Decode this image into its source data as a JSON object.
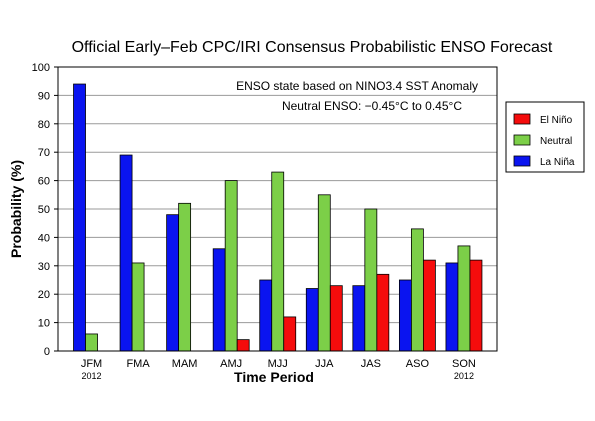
{
  "chart_data": {
    "type": "bar",
    "title": "Official Early–Feb CPC/IRI Consensus Probabilistic ENSO Forecast",
    "xlabel": "Time Period",
    "ylabel": "Probability (%)",
    "ylim": [
      0,
      100
    ],
    "yticks": [
      0,
      10,
      20,
      30,
      40,
      50,
      60,
      70,
      80,
      90,
      100
    ],
    "grid": true,
    "categories": [
      "JFM",
      "FMA",
      "MAM",
      "AMJ",
      "MJJ",
      "JJA",
      "JAS",
      "ASO",
      "SON"
    ],
    "category_sublabels": [
      "2012",
      "",
      "",
      "",
      "",
      "",
      "",
      "",
      "2012"
    ],
    "annotations": [
      "ENSO state based on NINO3.4 SST Anomaly",
      "Neutral ENSO: −0.45°C to 0.45°C"
    ],
    "legend_placement": "right",
    "series": [
      {
        "name": "La Niña",
        "color": "#0a14f0",
        "values": [
          94,
          69,
          48,
          36,
          25,
          22,
          23,
          25,
          31
        ]
      },
      {
        "name": "Neutral",
        "color": "#7ccf48",
        "values": [
          6,
          31,
          52,
          60,
          63,
          55,
          50,
          43,
          37
        ]
      },
      {
        "name": "El Niño",
        "color": "#f50c0c",
        "values": [
          0,
          0,
          0,
          4,
          12,
          23,
          27,
          32,
          32
        ]
      }
    ],
    "legend_order": [
      "El Niño",
      "Neutral",
      "La Niña"
    ]
  }
}
